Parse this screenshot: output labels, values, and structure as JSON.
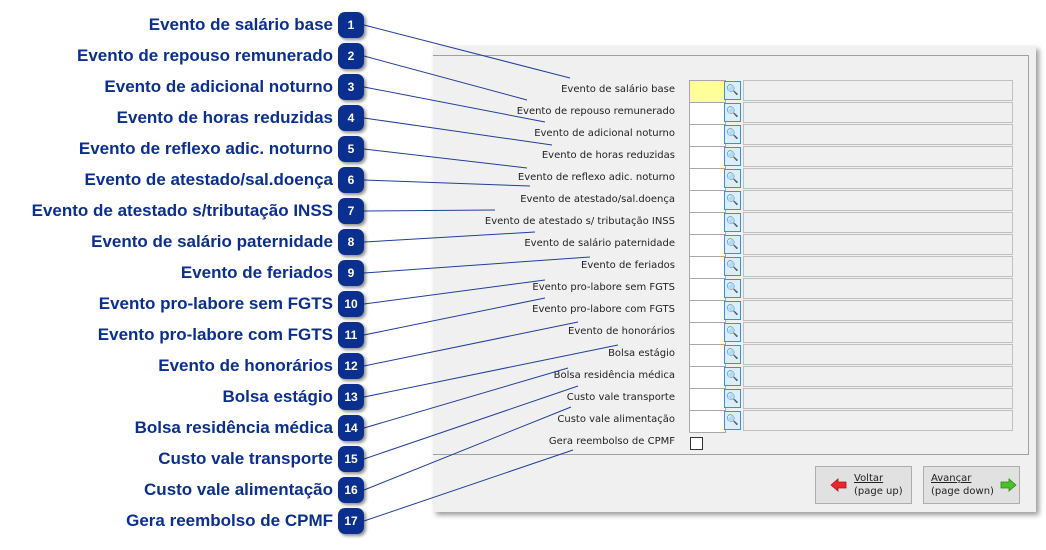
{
  "callouts": [
    {
      "n": "1",
      "label": "Evento de salário base"
    },
    {
      "n": "2",
      "label": "Evento de repouso remunerado"
    },
    {
      "n": "3",
      "label": "Evento de adicional noturno"
    },
    {
      "n": "4",
      "label": "Evento de horas reduzidas"
    },
    {
      "n": "5",
      "label": "Evento de reflexo adic. noturno"
    },
    {
      "n": "6",
      "label": "Evento de atestado/sal.doença"
    },
    {
      "n": "7",
      "label": "Evento de atestado s/tributação INSS"
    },
    {
      "n": "8",
      "label": "Evento de salário paternidade"
    },
    {
      "n": "9",
      "label": "Evento de feriados"
    },
    {
      "n": "10",
      "label": "Evento pro-labore sem FGTS"
    },
    {
      "n": "11",
      "label": "Evento pro-labore com FGTS"
    },
    {
      "n": "12",
      "label": "Evento de honorários"
    },
    {
      "n": "13",
      "label": "Bolsa estágio"
    },
    {
      "n": "14",
      "label": "Bolsa residência médica"
    },
    {
      "n": "15",
      "label": "Custo vale transporte"
    },
    {
      "n": "16",
      "label": "Custo vale alimentação"
    },
    {
      "n": "17",
      "label": "Gera reembolso de CPMF"
    }
  ],
  "form": {
    "fields": [
      {
        "label": "Evento de salário base",
        "value": ""
      },
      {
        "label": "Evento de repouso remunerado",
        "value": ""
      },
      {
        "label": "Evento de adicional noturno",
        "value": ""
      },
      {
        "label": "Evento de horas reduzidas",
        "value": ""
      },
      {
        "label": "Evento de reflexo adic. noturno",
        "value": ""
      },
      {
        "label": "Evento de atestado/sal.doença",
        "value": ""
      },
      {
        "label": "Evento de atestado s/ tributação INSS",
        "value": ""
      },
      {
        "label": "Evento de salário paternidade",
        "value": ""
      },
      {
        "label": "Evento de feriados",
        "value": ""
      },
      {
        "label": "Evento pro-labore sem FGTS",
        "value": ""
      },
      {
        "label": "Evento pro-labore com FGTS",
        "value": ""
      },
      {
        "label": "Evento de honorários",
        "value": ""
      },
      {
        "label": "Bolsa estágio",
        "value": ""
      },
      {
        "label": "Bolsa residência médica",
        "value": ""
      },
      {
        "label": "Custo vale transporte",
        "value": ""
      },
      {
        "label": "Custo vale alimentação",
        "value": ""
      }
    ],
    "checkbox": {
      "label": "Gera reembolso de CPMF",
      "checked": false
    }
  },
  "buttons": {
    "back": {
      "line1": "Voltar",
      "line2": "(page up)",
      "icon": "arrow-left-icon",
      "color": "#e8262b"
    },
    "next": {
      "line1": "Avançar",
      "line2": "(page down)",
      "icon": "arrow-right-icon",
      "color": "#4cc02a"
    }
  },
  "colors": {
    "callout": "#0b2f8f",
    "active_field": "#ffff99"
  }
}
